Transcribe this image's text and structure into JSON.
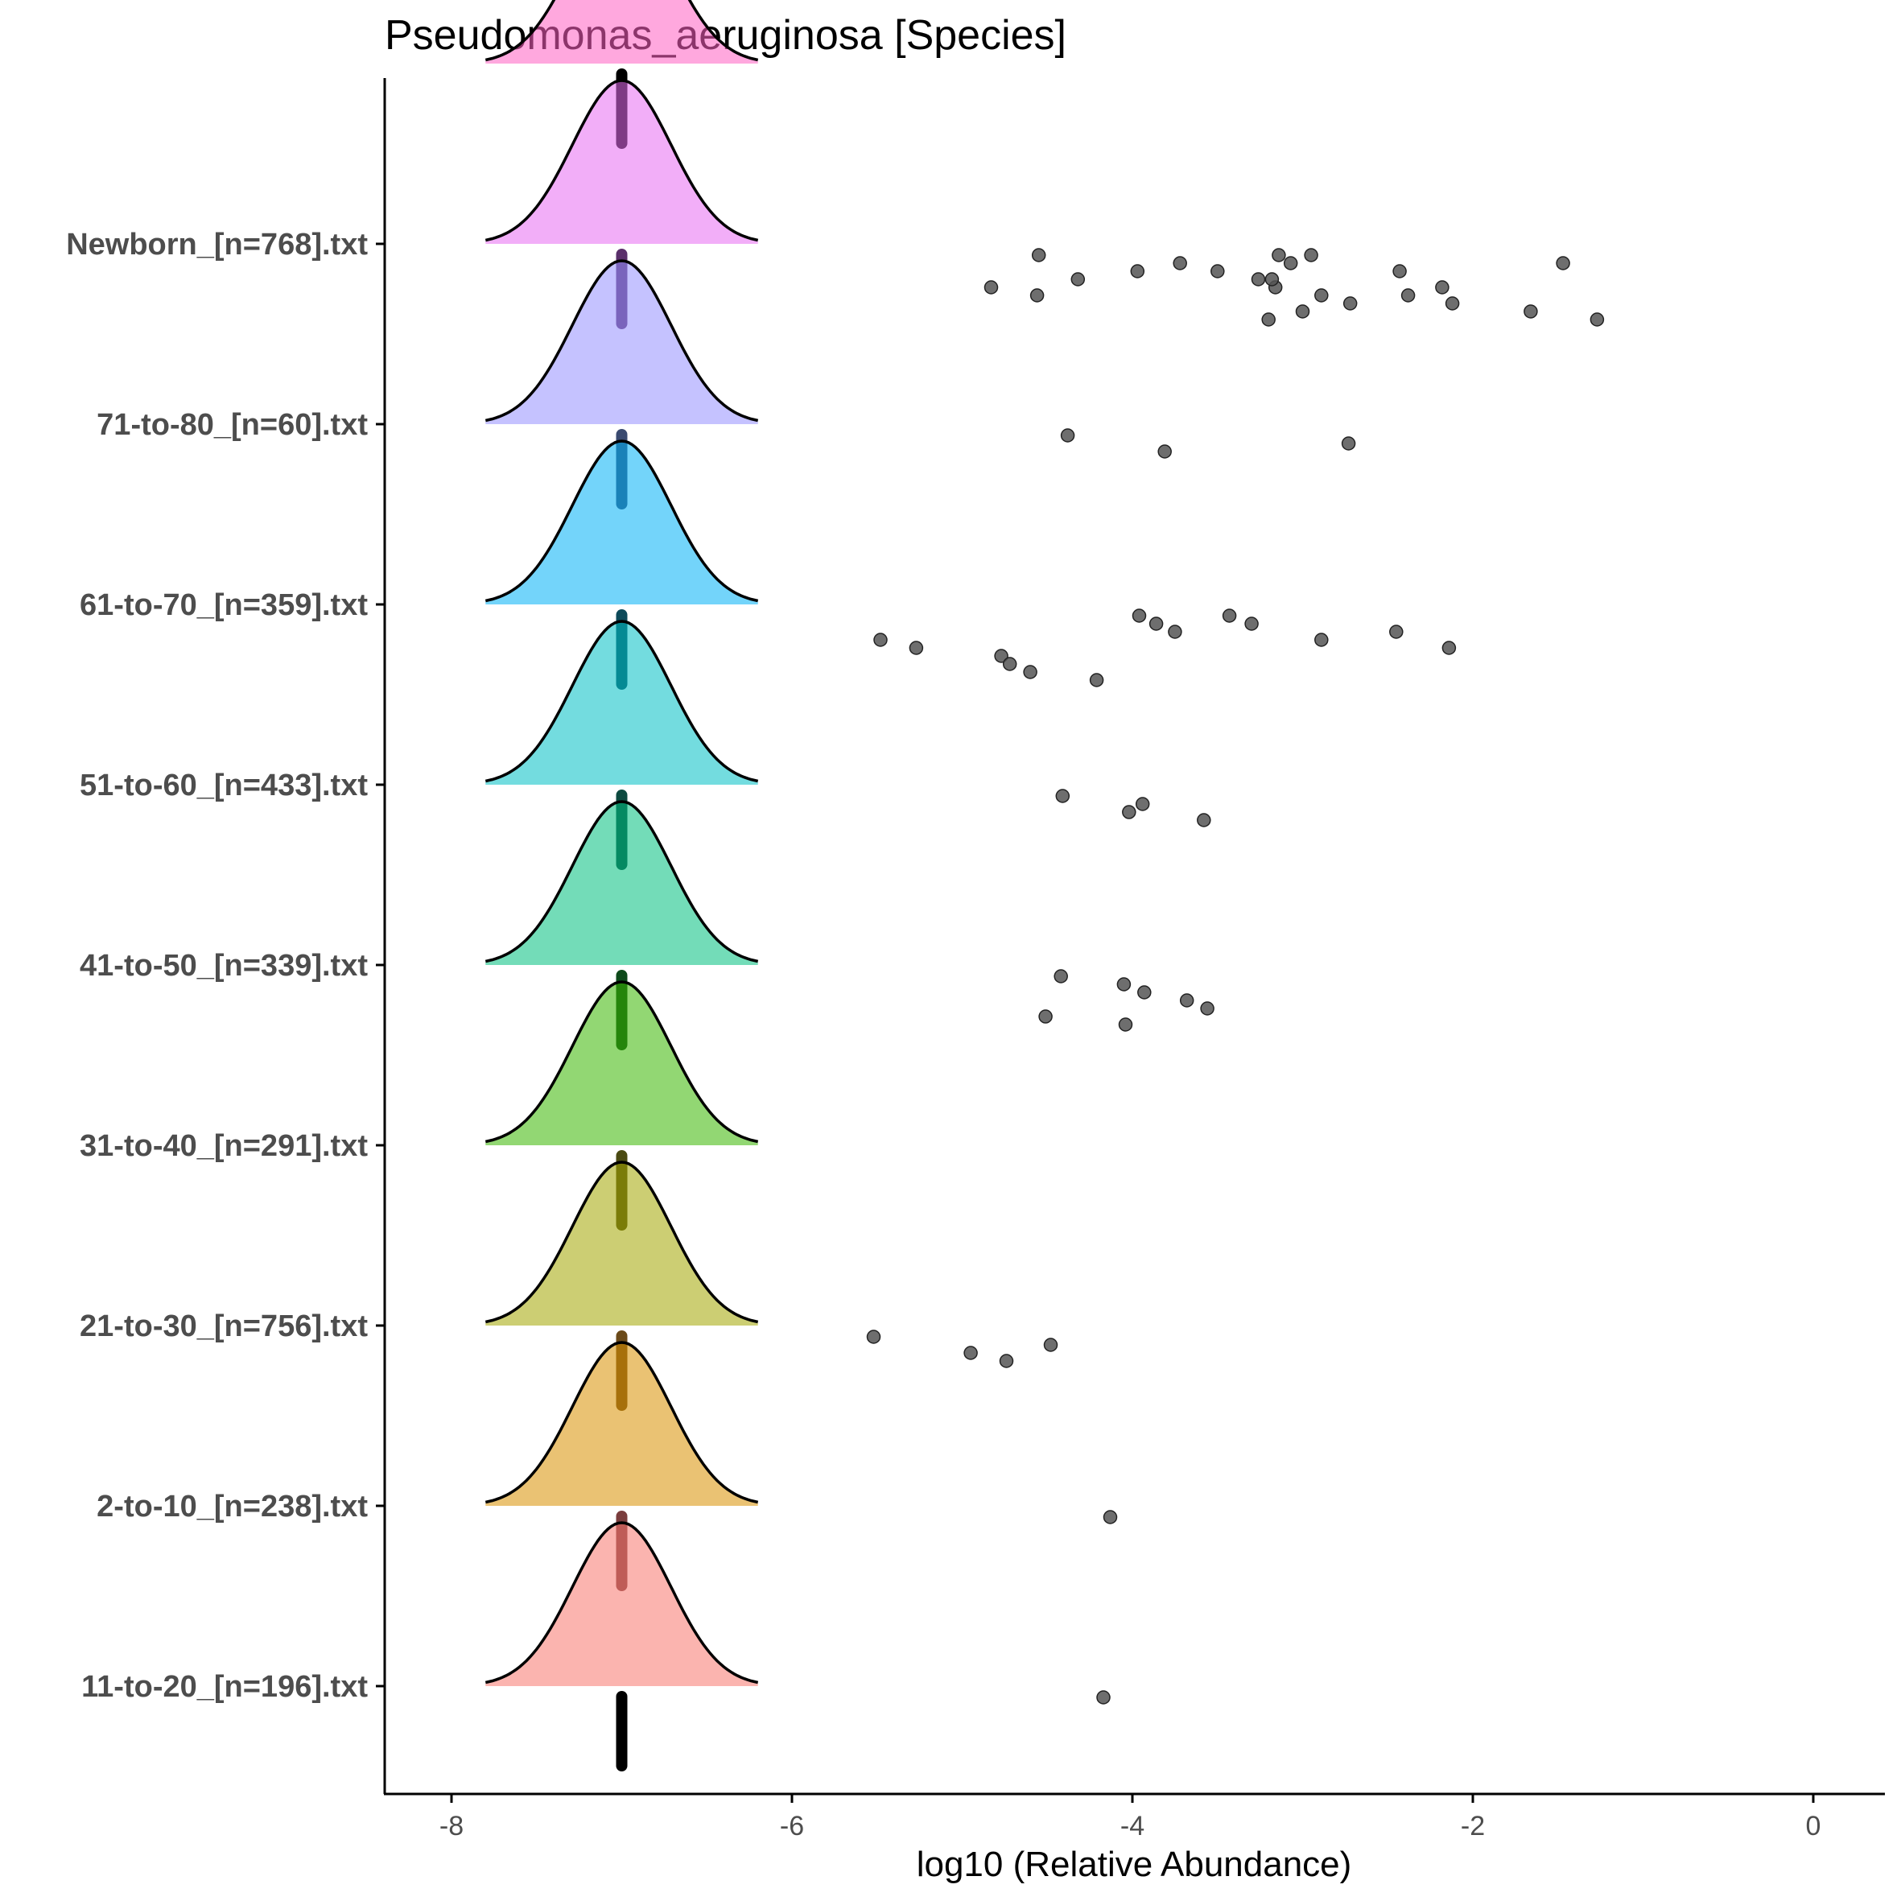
{
  "chart_data": {
    "type": "ridgeline",
    "title": "Pseudomonas_aeruginosa [Species]",
    "xlabel": "log10 (Relative Abundance)",
    "ylabel": "",
    "xlim": [
      -8.4,
      0.4
    ],
    "xticks": [
      -8,
      -6,
      -4,
      -2,
      0
    ],
    "xtick_labels": [
      "-8",
      "-6",
      "-4",
      "-2",
      "0"
    ],
    "grid": false,
    "legend": "none",
    "groups": [
      {
        "label": "11-to-20_[n=196].txt",
        "color": "#F8766D",
        "bar_color": "#000000",
        "points": [
          -4.17
        ]
      },
      {
        "label": "2-to-10_[n=238].txt",
        "color": "#D89000",
        "bar_color": "#7A3D3D",
        "points": [
          -4.13
        ]
      },
      {
        "label": "21-to-30_[n=756].txt",
        "color": "#A3A500",
        "bar_color": "#6B4A1A",
        "points": [
          -5.52,
          -4.48,
          -4.95,
          -4.74
        ]
      },
      {
        "label": "31-to-40_[n=291].txt",
        "color": "#39B600",
        "bar_color": "#4A4A12",
        "points": []
      },
      {
        "label": "41-to-50_[n=339].txt",
        "color": "#00BF7D",
        "bar_color": "#0E4A1A",
        "points": [
          -4.42,
          -4.05,
          -3.93,
          -3.68,
          -3.56,
          -4.51,
          -4.04
        ]
      },
      {
        "label": "51-to-60_[n=433].txt",
        "color": "#00BFC4",
        "bar_color": "#0D4A40",
        "points": [
          -4.41,
          -3.94,
          -4.02,
          -3.58
        ]
      },
      {
        "label": "61-to-70_[n=359].txt",
        "color": "#00B0F6",
        "bar_color": "#0D4A5A",
        "points": [
          -3.43,
          -3.3,
          -2.45,
          -5.48,
          -5.27,
          -4.77,
          -4.72,
          -4.6,
          -4.21,
          -3.96,
          -3.86,
          -3.75,
          -2.89,
          -2.14
        ]
      },
      {
        "label": "71-to-80_[n=60].txt",
        "color": "#9590FF",
        "bar_color": "#3A4A70",
        "points": [
          -4.38,
          -2.73,
          -3.81
        ]
      },
      {
        "label": "Newborn_[n=768].txt",
        "color": "#E76BF3",
        "bar_color": "#5A2F6A",
        "points": [
          -2.95,
          -1.47,
          -3.97,
          -4.32,
          -4.83,
          -4.56,
          -2.72,
          -3.0,
          -3.2,
          -3.14,
          -3.07,
          -2.43,
          -3.26,
          -3.16,
          -2.38,
          -2.12,
          -1.66,
          -1.27,
          -4.55,
          -3.72,
          -3.5,
          -3.18,
          -2.18,
          -2.89
        ]
      },
      {
        "label": "",
        "color": "#FF61C3",
        "bar_color": "#000000",
        "points": []
      }
    ],
    "density": {
      "mean": -7.0,
      "sd": 0.29,
      "range": [
        -7.8,
        -6.2
      ]
    }
  }
}
